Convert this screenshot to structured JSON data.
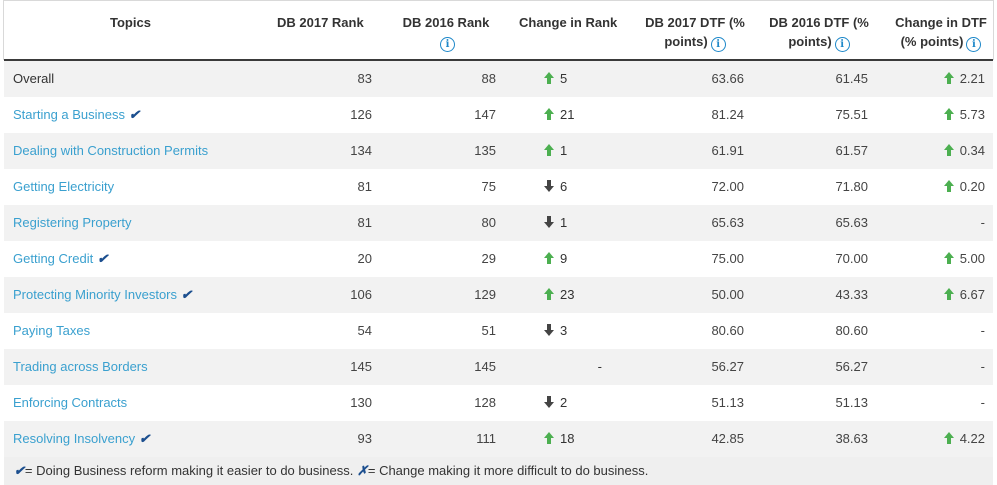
{
  "headers": {
    "topics": "Topics",
    "db2017_rank": "DB 2017 Rank",
    "db2016_rank": "DB 2016 Rank",
    "change_rank": "Change in Rank",
    "db2017_dtf_1": "DB 2017 DTF (%",
    "db2017_dtf_2": "points)",
    "db2016_dtf_1": "DB 2016 DTF (%",
    "db2016_dtf_2": "points)",
    "change_dtf_1": "Change in DTF",
    "change_dtf_2": "(% points)",
    "info_glyph": "i"
  },
  "reform_mark": "✔",
  "rows": [
    {
      "topic": "Overall",
      "link": false,
      "reform": false,
      "r2017": "83",
      "r2016": "88",
      "dir": "up",
      "chg": "5",
      "d2017": "63.66",
      "d2016": "61.45",
      "dtf_dir": "up",
      "dchg": "2.21"
    },
    {
      "topic": "Starting a Business",
      "link": true,
      "reform": true,
      "r2017": "126",
      "r2016": "147",
      "dir": "up",
      "chg": "21",
      "d2017": "81.24",
      "d2016": "75.51",
      "dtf_dir": "up",
      "dchg": "5.73"
    },
    {
      "topic": "Dealing with Construction Permits",
      "link": true,
      "reform": false,
      "r2017": "134",
      "r2016": "135",
      "dir": "up",
      "chg": "1",
      "d2017": "61.91",
      "d2016": "61.57",
      "dtf_dir": "up",
      "dchg": "0.34"
    },
    {
      "topic": "Getting Electricity",
      "link": true,
      "reform": false,
      "r2017": "81",
      "r2016": "75",
      "dir": "down",
      "chg": "6",
      "d2017": "72.00",
      "d2016": "71.80",
      "dtf_dir": "up",
      "dchg": "0.20"
    },
    {
      "topic": "Registering Property",
      "link": true,
      "reform": false,
      "r2017": "81",
      "r2016": "80",
      "dir": "down",
      "chg": "1",
      "d2017": "65.63",
      "d2016": "65.63",
      "dtf_dir": "none",
      "dchg": "-"
    },
    {
      "topic": "Getting Credit",
      "link": true,
      "reform": true,
      "r2017": "20",
      "r2016": "29",
      "dir": "up",
      "chg": "9",
      "d2017": "75.00",
      "d2016": "70.00",
      "dtf_dir": "up",
      "dchg": "5.00"
    },
    {
      "topic": "Protecting Minority Investors",
      "link": true,
      "reform": true,
      "r2017": "106",
      "r2016": "129",
      "dir": "up",
      "chg": "23",
      "d2017": "50.00",
      "d2016": "43.33",
      "dtf_dir": "up",
      "dchg": "6.67"
    },
    {
      "topic": "Paying Taxes",
      "link": true,
      "reform": false,
      "r2017": "54",
      "r2016": "51",
      "dir": "down",
      "chg": "3",
      "d2017": "80.60",
      "d2016": "80.60",
      "dtf_dir": "none",
      "dchg": "-"
    },
    {
      "topic": "Trading across Borders",
      "link": true,
      "reform": false,
      "r2017": "145",
      "r2016": "145",
      "dir": "none",
      "chg": "-",
      "d2017": "56.27",
      "d2016": "56.27",
      "dtf_dir": "none",
      "dchg": "-"
    },
    {
      "topic": "Enforcing Contracts",
      "link": true,
      "reform": false,
      "r2017": "130",
      "r2016": "128",
      "dir": "down",
      "chg": "2",
      "d2017": "51.13",
      "d2016": "51.13",
      "dtf_dir": "none",
      "dchg": "-"
    },
    {
      "topic": "Resolving Insolvency",
      "link": true,
      "reform": true,
      "r2017": "93",
      "r2016": "111",
      "dir": "up",
      "chg": "18",
      "d2017": "42.85",
      "d2016": "38.63",
      "dtf_dir": "up",
      "dchg": "4.22"
    }
  ],
  "footer": {
    "reform_symbol": "✔",
    "reform_text": "= Doing Business reform making it easier to do business.",
    "negative_symbol": "✗",
    "negative_text": "= Change making it more difficult to do business."
  },
  "chart_data": {
    "type": "table",
    "columns": [
      "Topics",
      "DB 2017 Rank",
      "DB 2016 Rank",
      "Change in Rank",
      "DB 2017 DTF (% points)",
      "DB 2016 DTF (% points)",
      "Change in DTF (% points)"
    ],
    "rows": [
      [
        "Overall",
        83,
        88,
        5,
        63.66,
        61.45,
        2.21
      ],
      [
        "Starting a Business",
        126,
        147,
        21,
        81.24,
        75.51,
        5.73
      ],
      [
        "Dealing with Construction Permits",
        134,
        135,
        1,
        61.91,
        61.57,
        0.34
      ],
      [
        "Getting Electricity",
        81,
        75,
        -6,
        72.0,
        71.8,
        0.2
      ],
      [
        "Registering Property",
        81,
        80,
        -1,
        65.63,
        65.63,
        null
      ],
      [
        "Getting Credit",
        20,
        29,
        9,
        75.0,
        70.0,
        5.0
      ],
      [
        "Protecting Minority Investors",
        106,
        129,
        23,
        50.0,
        43.33,
        6.67
      ],
      [
        "Paying Taxes",
        54,
        51,
        -3,
        80.6,
        80.6,
        null
      ],
      [
        "Trading across Borders",
        145,
        145,
        null,
        56.27,
        56.27,
        null
      ],
      [
        "Enforcing Contracts",
        130,
        128,
        -2,
        51.13,
        51.13,
        null
      ],
      [
        "Resolving Insolvency",
        93,
        111,
        18,
        42.85,
        38.63,
        4.22
      ]
    ]
  }
}
